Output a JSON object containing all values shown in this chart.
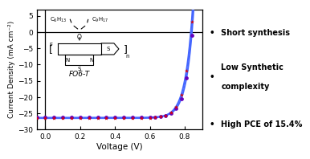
{
  "xlabel": "Voltage (V)",
  "ylabel": "Current Density (mA cm⁻²)",
  "xlim": [
    -0.05,
    0.9
  ],
  "ylim": [
    -30,
    7
  ],
  "xticks": [
    0.0,
    0.2,
    0.4,
    0.6,
    0.8
  ],
  "yticks": [
    -30,
    -25,
    -20,
    -15,
    -10,
    -5,
    0,
    5
  ],
  "curve_color": "#4466ff",
  "marker_red_color": "#dd0000",
  "marker_purple_color": "#6600bb",
  "bullet_texts": [
    "Short synthesis",
    "Low Synthetic\ncomplexity",
    "High PCE of 15.4%"
  ],
  "bullet_fontsize": 7.5,
  "molecule_label": "FO6-T",
  "background": "#ffffff",
  "jsc": -26.5,
  "voc": 0.835
}
